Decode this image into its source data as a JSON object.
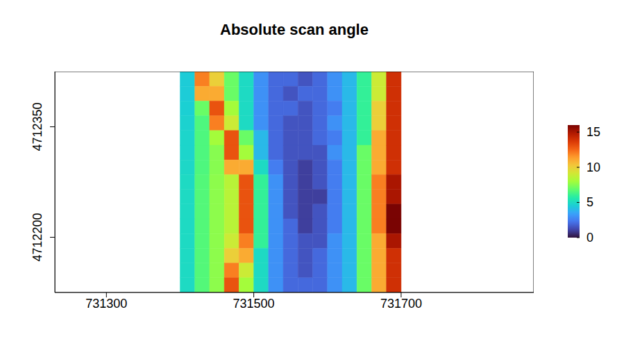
{
  "chart_data": {
    "type": "heatmap",
    "title": "Absolute scan angle",
    "x": [
      731410,
      731430,
      731450,
      731470,
      731490,
      731510,
      731530,
      731550,
      731570,
      731590,
      731610,
      731630,
      731650,
      731670,
      731690
    ],
    "y": [
      4712415,
      4712395,
      4712375,
      4712355,
      4712335,
      4712315,
      4712295,
      4712275,
      4712255,
      4712235,
      4712215,
      4712195,
      4712175,
      4712155,
      4712135
    ],
    "cells": [
      [
        4.5,
        12,
        10,
        7,
        5,
        3,
        2,
        2,
        1.5,
        2,
        3,
        4,
        6,
        9,
        14
      ],
      [
        4.5,
        11,
        11,
        7,
        5,
        3,
        2,
        1.5,
        2,
        2,
        3,
        4,
        6,
        9,
        14
      ],
      [
        4.6,
        7,
        13,
        8,
        5,
        3,
        2,
        2,
        1.5,
        2,
        2.5,
        4,
        6,
        10,
        14
      ],
      [
        4.7,
        6.5,
        12,
        9,
        5,
        3,
        2,
        1.5,
        1.5,
        2,
        3,
        4,
        6,
        10,
        14
      ],
      [
        4.8,
        6.5,
        8,
        13,
        7,
        4,
        2,
        1.5,
        1.5,
        2,
        2.5,
        4,
        6,
        11,
        14
      ],
      [
        4.8,
        6.5,
        7.5,
        13,
        8,
        4,
        2,
        1.5,
        1.5,
        1.5,
        3,
        4,
        7,
        11,
        14
      ],
      [
        4.9,
        6.5,
        7.5,
        11,
        11,
        5,
        2.5,
        1.5,
        1,
        1.5,
        2.5,
        4,
        7,
        11,
        14
      ],
      [
        5,
        6.6,
        7.6,
        8.5,
        13,
        6,
        3,
        1.5,
        1,
        1.5,
        2.5,
        4,
        7,
        12,
        15
      ],
      [
        5,
        6.6,
        7.6,
        8.5,
        13,
        6,
        3,
        1.5,
        1,
        1,
        2.5,
        4,
        7,
        12,
        15
      ],
      [
        5,
        6.6,
        7.6,
        8.5,
        13,
        6,
        3,
        1.5,
        1,
        1.5,
        2.5,
        4,
        7,
        12,
        16
      ],
      [
        5,
        6.6,
        7.6,
        8.5,
        13,
        6,
        3,
        2,
        1,
        1.5,
        2.5,
        4,
        7,
        12,
        16
      ],
      [
        5,
        6.6,
        7.6,
        9,
        12,
        6,
        3,
        2,
        1.5,
        1.5,
        3,
        4,
        7,
        11,
        15
      ],
      [
        5,
        6.6,
        7.6,
        10,
        11,
        5,
        3,
        2,
        1.5,
        2,
        3,
        4,
        7,
        11,
        14
      ],
      [
        5,
        6.6,
        7.6,
        12,
        9,
        5,
        3,
        2,
        1.5,
        2,
        3,
        4,
        7,
        11,
        14
      ],
      [
        5,
        6.6,
        7.6,
        13,
        8,
        5,
        3,
        2,
        2,
        2,
        3,
        4,
        7,
        11,
        14
      ]
    ],
    "xlim": [
      731230,
      731880
    ],
    "ylim": [
      4712125,
      4712425
    ],
    "xticks": [
      731300,
      731500,
      731700
    ],
    "yticks": [
      4712200,
      4712350
    ],
    "colorbar": {
      "range": [
        0,
        16
      ],
      "ticks": [
        0,
        5,
        10,
        15
      ]
    }
  }
}
